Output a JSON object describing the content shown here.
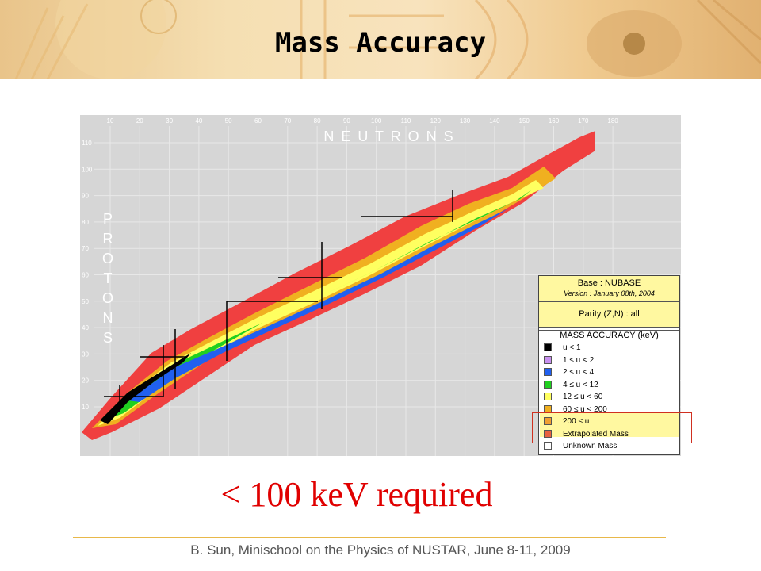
{
  "slide": {
    "title": "Mass Accuracy",
    "note": "< 100 keV required",
    "footer": "B. Sun, Minischool on the Physics of NUSTAR, June 8-11, 2009"
  },
  "chart": {
    "x_ticks": [
      "10",
      "20",
      "30",
      "40",
      "50",
      "60",
      "70",
      "80",
      "90",
      "100",
      "110",
      "120",
      "130",
      "140",
      "150",
      "160",
      "170",
      "180"
    ],
    "y_ticks": [
      "10",
      "20",
      "30",
      "40",
      "50",
      "60",
      "70",
      "80",
      "90",
      "100",
      "110"
    ],
    "x_axis_label": "N E U T R O N S",
    "y_axis_letters": [
      "P",
      "R",
      "O",
      "T",
      "O",
      "N",
      "S"
    ]
  },
  "legend": {
    "base": "Base : NUBASE",
    "version": "Version :  January 08th, 2004",
    "parity": "Parity (Z,N) : all",
    "accuracy_title": "MASS ACCURACY (keV)",
    "items": [
      {
        "label": "u  <  1",
        "color": "#000000"
      },
      {
        "label": "1  ≤  u  <  2",
        "color": "#c890f0"
      },
      {
        "label": "2  ≤  u  <  4",
        "color": "#2060f0"
      },
      {
        "label": "4  ≤  u  <  12",
        "color": "#20d020"
      },
      {
        "label": "12  ≤  u  <  60",
        "color": "#ffff60"
      },
      {
        "label": "60  ≤  u  < 200",
        "color": "#f0b020"
      },
      {
        "label": "200  ≤  u",
        "color": "#f0a030"
      },
      {
        "label": "Extrapolated Mass",
        "color": "#e86040"
      },
      {
        "label": "Unknown Mass",
        "color": "#ffffff"
      }
    ]
  }
}
